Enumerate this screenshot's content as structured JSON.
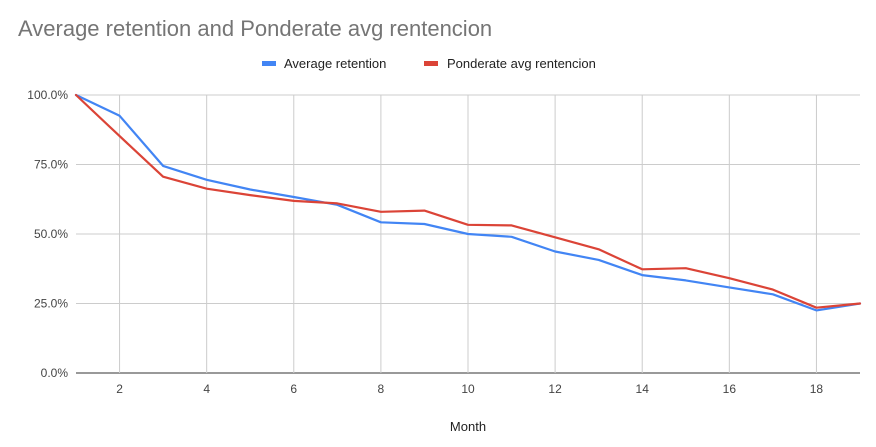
{
  "chart_data": {
    "type": "line",
    "title": "Average retention and Ponderate avg rentencion",
    "xlabel": "Month",
    "ylabel": "",
    "xlim": [
      1,
      19
    ],
    "ylim": [
      0,
      100
    ],
    "x_ticks": [
      2,
      4,
      6,
      8,
      10,
      12,
      14,
      16,
      18
    ],
    "y_ticks": [
      {
        "value": 0,
        "label": "0.0%"
      },
      {
        "value": 25,
        "label": "25.0%"
      },
      {
        "value": 50,
        "label": "50.0%"
      },
      {
        "value": 75,
        "label": "75.0%"
      },
      {
        "value": 100,
        "label": "100.0%"
      }
    ],
    "grid": true,
    "legend_position": "top",
    "x": [
      1,
      2,
      3,
      4,
      5,
      6,
      7,
      8,
      9,
      10,
      11,
      12,
      13,
      14,
      15,
      16,
      17,
      18,
      19
    ],
    "series": [
      {
        "name": "Average retention",
        "color": "#4285f4",
        "values": [
          100,
          92.5,
          74.5,
          69.5,
          66,
          63.3,
          60.5,
          54.2,
          53.6,
          50,
          49,
          43.7,
          40.7,
          35.2,
          33.3,
          30.8,
          28.3,
          22.5,
          25
        ]
      },
      {
        "name": "Ponderate avg rentencion",
        "color": "#db4437",
        "values": [
          100,
          85.2,
          70.6,
          66.3,
          64,
          61.9,
          61,
          58,
          58.4,
          53.3,
          53.1,
          48.8,
          44.5,
          37.3,
          37.7,
          34.1,
          30,
          23.5,
          25
        ]
      }
    ]
  }
}
